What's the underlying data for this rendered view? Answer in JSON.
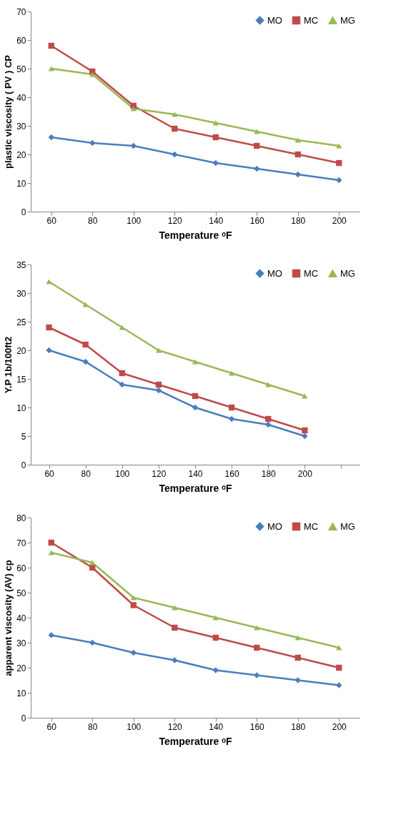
{
  "chart_data": [
    {
      "type": "line",
      "xlabel": "Temperature ᵒF",
      "ylabel": "plastic viscosity ( PV ) CP",
      "categories": [
        "60",
        "80",
        "100",
        "120",
        "140",
        "160",
        "180",
        "200"
      ],
      "ylim": [
        0,
        70
      ],
      "yticks": [
        0,
        10,
        20,
        30,
        40,
        50,
        60,
        70
      ],
      "grid": false,
      "legend": "top right",
      "series": [
        {
          "name": "MO",
          "color": "#4a7ebb",
          "marker": "diamond",
          "values": [
            26,
            24,
            23,
            20,
            17,
            15,
            13,
            11
          ]
        },
        {
          "name": "MC",
          "color": "#be4b48",
          "marker": "square",
          "values": [
            58,
            49,
            37,
            29,
            26,
            23,
            20,
            17
          ]
        },
        {
          "name": "MG",
          "color": "#98b954",
          "marker": "triangle",
          "values": [
            50,
            48,
            36,
            34,
            31,
            28,
            25,
            23
          ]
        }
      ]
    },
    {
      "type": "line",
      "xlabel": "Temperature ᵒF",
      "ylabel": "Y.P 1b/100ft2",
      "categories": [
        "60",
        "80",
        "100",
        "120",
        "140",
        "160",
        "180",
        "200",
        null
      ],
      "ylim": [
        0,
        35
      ],
      "yticks": [
        0,
        5,
        10,
        15,
        20,
        25,
        30,
        35
      ],
      "grid": false,
      "legend": "top right",
      "series": [
        {
          "name": "MO",
          "color": "#4a7ebb",
          "marker": "diamond",
          "values": [
            20,
            18,
            14,
            13,
            10,
            8,
            7,
            5,
            null
          ]
        },
        {
          "name": "MC",
          "color": "#be4b48",
          "marker": "square",
          "values": [
            24,
            21,
            16,
            14,
            12,
            10,
            8,
            6,
            null
          ]
        },
        {
          "name": "MG",
          "color": "#98b954",
          "marker": "triangle",
          "values": [
            32,
            28,
            24,
            20,
            18,
            16,
            14,
            12,
            null
          ]
        }
      ]
    },
    {
      "type": "line",
      "xlabel": "Temperature ᵒF",
      "ylabel": "apparent viscosity (AV) cp",
      "categories": [
        "60",
        "80",
        "100",
        "120",
        "140",
        "160",
        "180",
        "200"
      ],
      "ylim": [
        0,
        80
      ],
      "yticks": [
        0,
        10,
        20,
        30,
        40,
        50,
        60,
        70,
        80
      ],
      "grid": false,
      "legend": "top right",
      "series": [
        {
          "name": "MO",
          "color": "#4a7ebb",
          "marker": "diamond",
          "values": [
            33,
            30,
            26,
            23,
            19,
            17,
            15,
            13
          ]
        },
        {
          "name": "MC",
          "color": "#be4b48",
          "marker": "square",
          "values": [
            70,
            60,
            45,
            36,
            32,
            28,
            24,
            20
          ]
        },
        {
          "name": "MG",
          "color": "#98b954",
          "marker": "triangle",
          "values": [
            66,
            62,
            48,
            44,
            40,
            36,
            32,
            28
          ]
        }
      ]
    }
  ]
}
